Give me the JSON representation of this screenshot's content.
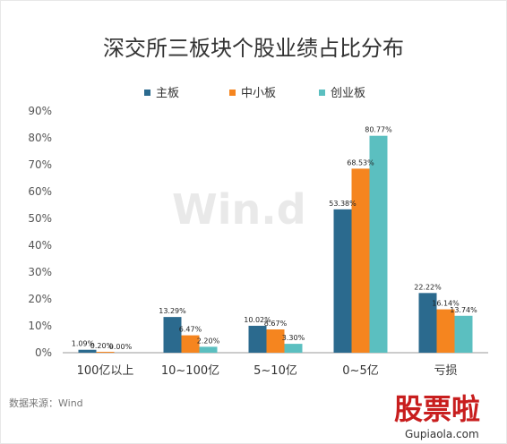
{
  "chart_data": {
    "type": "bar",
    "title": "深交所三板块个股业绩占比分布",
    "categories": [
      "100亿以上",
      "10~100亿",
      "5~10亿",
      "0~5亿",
      "亏损"
    ],
    "series": [
      {
        "name": "主板",
        "values": [
          1.09,
          13.29,
          10.02,
          53.38,
          22.22
        ],
        "labels": [
          "1.09%",
          "13.29%",
          "10.02%",
          "53.38%",
          "22.22%"
        ],
        "color": "#2b6a8e"
      },
      {
        "name": "中小板",
        "values": [
          0.2,
          6.47,
          8.67,
          68.53,
          16.14
        ],
        "labels": [
          "0.20%",
          "6.47%",
          "8.67%",
          "68.53%",
          "16.14%"
        ],
        "color": "#f5851f"
      },
      {
        "name": "创业板",
        "values": [
          0.0,
          2.2,
          3.3,
          80.77,
          13.74
        ],
        "labels": [
          "0.00%",
          "2.20%",
          "3.30%",
          "80.77%",
          "13.74%"
        ],
        "color": "#5bbfc0"
      }
    ],
    "ylim": [
      0,
      90
    ],
    "yticks": [
      "0%",
      "10%",
      "20%",
      "30%",
      "40%",
      "50%",
      "60%",
      "70%",
      "80%",
      "90%"
    ],
    "xlabel": "",
    "ylabel": "",
    "grid": false,
    "legend_position": "top"
  },
  "source_text": "数据来源：Wind",
  "watermark_text": "Win.d",
  "brand": {
    "logo_text": "股票啦",
    "url": "Gupiaola.com"
  }
}
